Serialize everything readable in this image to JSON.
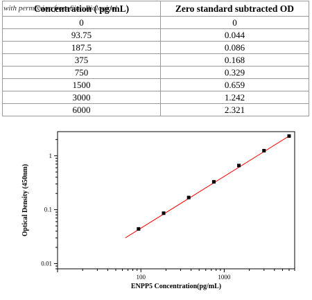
{
  "watermark": "with permission from Sino Biological",
  "table": {
    "headers": [
      "Concentration ( pg/mL)",
      "Zero standard subtracted OD"
    ],
    "rows": [
      [
        "0",
        "0"
      ],
      [
        "93.75",
        "0.044"
      ],
      [
        "187.5",
        "0.086"
      ],
      [
        "375",
        "0.168"
      ],
      [
        "750",
        "0.329"
      ],
      [
        "1500",
        "0.659"
      ],
      [
        "3000",
        "1.242"
      ],
      [
        "6000",
        "2.321"
      ]
    ]
  },
  "chart_data": {
    "type": "scatter",
    "title": "",
    "xlabel": "ENPP5  Concentration(pg/mL)",
    "ylabel": "Optical Density (450nm)",
    "x_scale": "log",
    "y_scale": "log",
    "xlim": [
      10,
      7000
    ],
    "ylim": [
      0.008,
      2.8
    ],
    "x_ticks": [
      "100",
      "1000"
    ],
    "y_ticks": [
      "0.01",
      "0.1",
      "1"
    ],
    "grid": false,
    "legend": "none",
    "series": [
      {
        "x": [
          93.75,
          187.5,
          375,
          750,
          1500,
          3000,
          6000
        ],
        "y": [
          0.044,
          0.086,
          0.168,
          0.329,
          0.659,
          1.242,
          2.321
        ]
      }
    ],
    "fit_line": {
      "x": [
        65,
        6000
      ],
      "y": [
        0.03,
        2.321
      ]
    },
    "colors": {
      "points": "#000000",
      "fit_line": "#ff0000"
    }
  }
}
